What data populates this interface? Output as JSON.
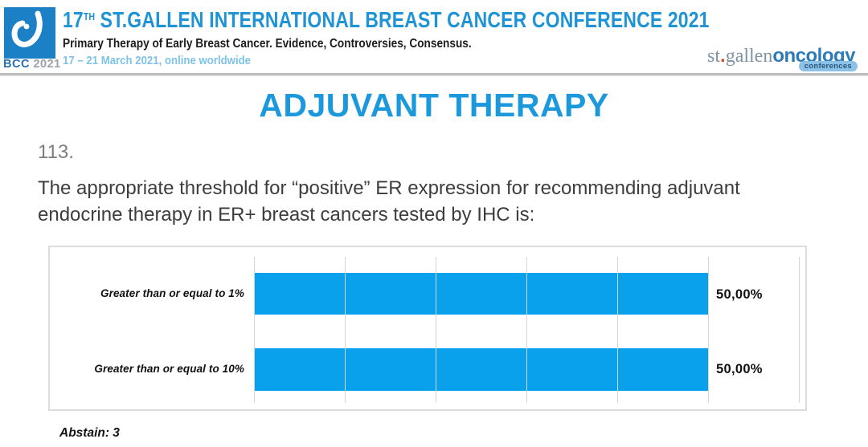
{
  "header": {
    "logo": {
      "acronym": "BCC",
      "year": "2021"
    },
    "title_num": "17",
    "title_sup": "TH",
    "title_rest": " ST.GALLEN INTERNATIONAL BREAST CANCER CONFERENCE 2021",
    "subtitle": "Primary Therapy of Early Breast Cancer. Evidence, Controversies, Consensus.",
    "date_line": "17 – 21 March 2021, online worldwide",
    "brand": {
      "st": "st",
      "dot": ".",
      "gallen": "gallen",
      "oncology": "oncology",
      "conferences": "conferences"
    }
  },
  "main": {
    "page_title": "ADJUVANT THERAPY",
    "question_number": "113.",
    "question_text": "The appropriate threshold for “positive” ER expression for recommending adjuvant endocrine therapy in ER+ breast cancers tested by IHC is:",
    "abstain_label": "Abstain: 3"
  },
  "chart_data": {
    "type": "bar",
    "orientation": "horizontal",
    "title": "",
    "categories": [
      "Greater than or equal to 1%",
      "Greater than or equal to 10%"
    ],
    "values": [
      50.0,
      50.0
    ],
    "value_labels": [
      "50,00%",
      "50,00%"
    ],
    "xlim": [
      0,
      60
    ],
    "gridline_step": 10,
    "grid": true,
    "legend": false,
    "bar_color": "#0aa1ec",
    "abstain_count": 3
  },
  "colors": {
    "header_title_blue": "#1e93d6",
    "date_light_blue": "#7fc3e6",
    "page_title_blue": "#1b99dc",
    "bar_blue": "#0aa1ec",
    "logo_square_blue": "#1c80c6",
    "oncology_blue": "#2d7ab8",
    "orange_dot": "#d2512b"
  }
}
